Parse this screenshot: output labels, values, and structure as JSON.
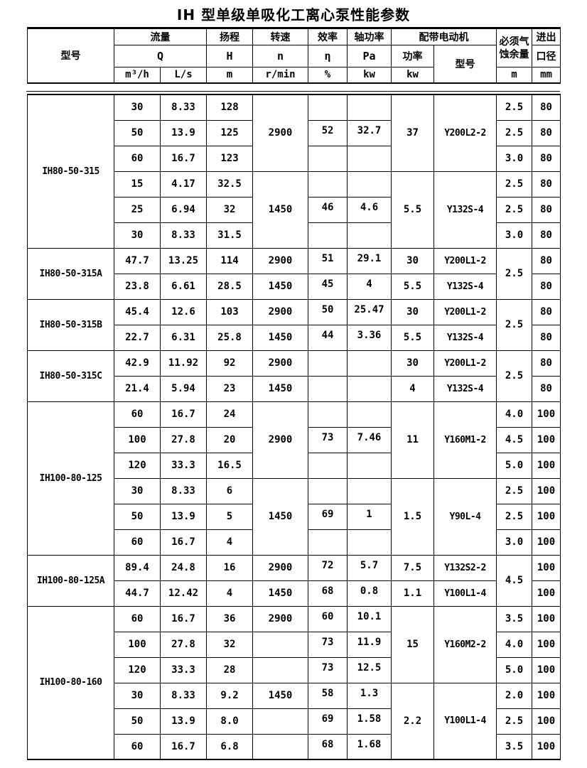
{
  "page_title": "IH 型单级单吸化工离心泵性能参数",
  "colors": {
    "border": "#000000",
    "background": "#ffffff",
    "text": "#000000"
  },
  "table": {
    "header": {
      "model": "型号",
      "flow": "流量",
      "flow_symbol": "Q",
      "flow_unit_m3h": "m³/h",
      "flow_unit_ls": "L/s",
      "head": "扬程",
      "head_symbol": "H",
      "head_unit": "m",
      "speed": "转速",
      "speed_symbol": "n",
      "speed_unit": "r/min",
      "efficiency": "效率",
      "efficiency_symbol": "η",
      "efficiency_unit": "%",
      "shaft_power": "轴功率",
      "shaft_power_symbol": "Pa",
      "shaft_power_unit": "kw",
      "motor_group": "配带电动机",
      "motor_power": "功率",
      "motor_power_unit": "kw",
      "motor_model": "型号",
      "npsh_line1": "必须气",
      "npsh_line2": "蚀余量",
      "npsh_unit": "m",
      "diameter_line1": "进出",
      "diameter_line2": "口径",
      "diameter_unit": "mm"
    },
    "sections": [
      {
        "name": "IH80-50-315",
        "rows": [
          [
            {
              "t": "IH80-50-315",
              "rs": 6,
              "cls": "model"
            },
            {
              "t": "30"
            },
            {
              "t": "8.33"
            },
            {
              "t": "128"
            },
            {
              "t": "2900",
              "rs": 3
            },
            {
              "t": ""
            },
            {
              "t": ""
            },
            {
              "t": "37",
              "rs": 3
            },
            {
              "t": "Y200L2-2",
              "rs": 3,
              "cls": "motor"
            },
            {
              "t": "2.5"
            },
            {
              "t": "80"
            }
          ],
          [
            {
              "t": "50"
            },
            {
              "t": "13.9"
            },
            {
              "t": "125"
            },
            {
              "t": "52",
              "cls": "up"
            },
            {
              "t": "32.7",
              "cls": "up"
            },
            {
              "t": "2.5"
            },
            {
              "t": "80"
            }
          ],
          [
            {
              "t": "60"
            },
            {
              "t": "16.7"
            },
            {
              "t": "123"
            },
            {
              "t": ""
            },
            {
              "t": ""
            },
            {
              "t": "3.0"
            },
            {
              "t": "80"
            }
          ],
          [
            {
              "t": "15"
            },
            {
              "t": "4.17"
            },
            {
              "t": "32.5"
            },
            {
              "t": "1450",
              "rs": 3
            },
            {
              "t": ""
            },
            {
              "t": ""
            },
            {
              "t": "5.5",
              "rs": 3
            },
            {
              "t": "Y132S-4",
              "rs": 3,
              "cls": "motor"
            },
            {
              "t": "2.5"
            },
            {
              "t": "80"
            }
          ],
          [
            {
              "t": "25"
            },
            {
              "t": "6.94"
            },
            {
              "t": "32"
            },
            {
              "t": "46",
              "cls": "up"
            },
            {
              "t": "4.6",
              "cls": "up"
            },
            {
              "t": "2.5"
            },
            {
              "t": "80"
            }
          ],
          [
            {
              "t": "30"
            },
            {
              "t": "8.33"
            },
            {
              "t": "31.5"
            },
            {
              "t": ""
            },
            {
              "t": ""
            },
            {
              "t": "3.0"
            },
            {
              "t": "80"
            }
          ]
        ]
      },
      {
        "name": "IH80-50-315A",
        "rows": [
          [
            {
              "t": "IH80-50-315A",
              "rs": 2,
              "cls": "model"
            },
            {
              "t": "47.7"
            },
            {
              "t": "13.25"
            },
            {
              "t": "114"
            },
            {
              "t": "2900"
            },
            {
              "t": "51",
              "cls": "up"
            },
            {
              "t": "29.1",
              "cls": "up"
            },
            {
              "t": "30"
            },
            {
              "t": "Y200L1-2",
              "cls": "motor"
            },
            {
              "t": "2.5",
              "rs": 2
            },
            {
              "t": "80"
            }
          ],
          [
            {
              "t": "23.8"
            },
            {
              "t": "6.61"
            },
            {
              "t": "28.5"
            },
            {
              "t": "1450"
            },
            {
              "t": "45",
              "cls": "up"
            },
            {
              "t": "4",
              "cls": "up"
            },
            {
              "t": "5.5"
            },
            {
              "t": "Y132S-4",
              "cls": "motor"
            },
            {
              "t": "80"
            }
          ]
        ]
      },
      {
        "name": "IH80-50-315B",
        "rows": [
          [
            {
              "t": "IH80-50-315B",
              "rs": 2,
              "cls": "model"
            },
            {
              "t": "45.4"
            },
            {
              "t": "12.6"
            },
            {
              "t": "103"
            },
            {
              "t": "2900"
            },
            {
              "t": "50",
              "cls": "up"
            },
            {
              "t": "25.47",
              "cls": "up"
            },
            {
              "t": "30"
            },
            {
              "t": "Y200L1-2",
              "cls": "motor"
            },
            {
              "t": "2.5",
              "rs": 2
            },
            {
              "t": "80"
            }
          ],
          [
            {
              "t": "22.7"
            },
            {
              "t": "6.31"
            },
            {
              "t": "25.8"
            },
            {
              "t": "1450"
            },
            {
              "t": "44",
              "cls": "up"
            },
            {
              "t": "3.36",
              "cls": "up"
            },
            {
              "t": "5.5"
            },
            {
              "t": "Y132S-4",
              "cls": "motor"
            },
            {
              "t": "80"
            }
          ]
        ]
      },
      {
        "name": "IH80-50-315C",
        "rows": [
          [
            {
              "t": "IH80-50-315C",
              "rs": 2,
              "cls": "model"
            },
            {
              "t": "42.9"
            },
            {
              "t": "11.92"
            },
            {
              "t": "92"
            },
            {
              "t": "2900"
            },
            {
              "t": ""
            },
            {
              "t": ""
            },
            {
              "t": "30"
            },
            {
              "t": "Y200L1-2",
              "cls": "motor"
            },
            {
              "t": "2.5",
              "rs": 2
            },
            {
              "t": "80"
            }
          ],
          [
            {
              "t": "21.4"
            },
            {
              "t": "5.94"
            },
            {
              "t": "23"
            },
            {
              "t": "1450"
            },
            {
              "t": ""
            },
            {
              "t": ""
            },
            {
              "t": "4"
            },
            {
              "t": "Y132S-4",
              "cls": "motor"
            },
            {
              "t": "80"
            }
          ]
        ]
      },
      {
        "name": "IH100-80-125",
        "rows": [
          [
            {
              "t": "IH100-80-125",
              "rs": 6,
              "cls": "model"
            },
            {
              "t": "60"
            },
            {
              "t": "16.7"
            },
            {
              "t": "24"
            },
            {
              "t": "2900",
              "rs": 3
            },
            {
              "t": ""
            },
            {
              "t": ""
            },
            {
              "t": "11",
              "rs": 3
            },
            {
              "t": "Y160M1-2",
              "rs": 3,
              "cls": "motor"
            },
            {
              "t": "4.0"
            },
            {
              "t": "100"
            }
          ],
          [
            {
              "t": "100"
            },
            {
              "t": "27.8"
            },
            {
              "t": "20"
            },
            {
              "t": "73",
              "cls": "up"
            },
            {
              "t": "7.46",
              "cls": "up"
            },
            {
              "t": "4.5"
            },
            {
              "t": "100"
            }
          ],
          [
            {
              "t": "120"
            },
            {
              "t": "33.3"
            },
            {
              "t": "16.5"
            },
            {
              "t": ""
            },
            {
              "t": ""
            },
            {
              "t": "5.0"
            },
            {
              "t": "100"
            }
          ],
          [
            {
              "t": "30"
            },
            {
              "t": "8.33"
            },
            {
              "t": "6"
            },
            {
              "t": "1450",
              "rs": 3
            },
            {
              "t": ""
            },
            {
              "t": ""
            },
            {
              "t": "1.5",
              "rs": 3
            },
            {
              "t": "Y90L-4",
              "rs": 3,
              "cls": "motor"
            },
            {
              "t": "2.5"
            },
            {
              "t": "100"
            }
          ],
          [
            {
              "t": "50"
            },
            {
              "t": "13.9"
            },
            {
              "t": "5"
            },
            {
              "t": "69",
              "cls": "up"
            },
            {
              "t": "1",
              "cls": "up"
            },
            {
              "t": "2.5"
            },
            {
              "t": "100"
            }
          ],
          [
            {
              "t": "60"
            },
            {
              "t": "16.7"
            },
            {
              "t": "4"
            },
            {
              "t": ""
            },
            {
              "t": ""
            },
            {
              "t": "3.0"
            },
            {
              "t": "100"
            }
          ]
        ]
      },
      {
        "name": "IH100-80-125A",
        "rows": [
          [
            {
              "t": "IH100-80-125A",
              "rs": 2,
              "cls": "model"
            },
            {
              "t": "89.4"
            },
            {
              "t": "24.8"
            },
            {
              "t": "16"
            },
            {
              "t": "2900"
            },
            {
              "t": "72",
              "cls": "up"
            },
            {
              "t": "5.7",
              "cls": "up"
            },
            {
              "t": "7.5"
            },
            {
              "t": "Y132S2-2",
              "cls": "motor"
            },
            {
              "t": "4.5",
              "rs": 2
            },
            {
              "t": "100"
            }
          ],
          [
            {
              "t": "44.7"
            },
            {
              "t": "12.42"
            },
            {
              "t": "4"
            },
            {
              "t": "1450"
            },
            {
              "t": "68",
              "cls": "up"
            },
            {
              "t": "0.8",
              "cls": "up"
            },
            {
              "t": "1.1"
            },
            {
              "t": "Y100L1-4",
              "cls": "motor"
            },
            {
              "t": "100"
            }
          ]
        ]
      },
      {
        "name": "IH100-80-160",
        "rows": [
          [
            {
              "t": "IH100-80-160",
              "rs": 6,
              "cls": "model"
            },
            {
              "t": "60"
            },
            {
              "t": "16.7"
            },
            {
              "t": "36"
            },
            {
              "t": "2900"
            },
            {
              "t": "60",
              "cls": "up"
            },
            {
              "t": "10.1",
              "cls": "up"
            },
            {
              "t": "15",
              "rs": 3
            },
            {
              "t": "Y160M2-2",
              "rs": 3,
              "cls": "motor"
            },
            {
              "t": "3.5"
            },
            {
              "t": "100"
            }
          ],
          [
            {
              "t": "100"
            },
            {
              "t": "27.8"
            },
            {
              "t": "32"
            },
            {
              "t": ""
            },
            {
              "t": "73",
              "cls": "up"
            },
            {
              "t": "11.9",
              "cls": "up"
            },
            {
              "t": "4.0"
            },
            {
              "t": "100"
            }
          ],
          [
            {
              "t": "120"
            },
            {
              "t": "33.3"
            },
            {
              "t": "28"
            },
            {
              "t": ""
            },
            {
              "t": "73",
              "cls": "up"
            },
            {
              "t": "12.5",
              "cls": "up"
            },
            {
              "t": "5.0"
            },
            {
              "t": "100"
            }
          ],
          [
            {
              "t": "30"
            },
            {
              "t": "8.33"
            },
            {
              "t": "9.2"
            },
            {
              "t": "1450"
            },
            {
              "t": "58",
              "cls": "up"
            },
            {
              "t": "1.3",
              "cls": "up"
            },
            {
              "t": "2.2",
              "rs": 3
            },
            {
              "t": "Y100L1-4",
              "rs": 3,
              "cls": "motor"
            },
            {
              "t": "2.0"
            },
            {
              "t": "100"
            }
          ],
          [
            {
              "t": "50"
            },
            {
              "t": "13.9"
            },
            {
              "t": "8.0"
            },
            {
              "t": ""
            },
            {
              "t": "69",
              "cls": "up"
            },
            {
              "t": "1.58",
              "cls": "up"
            },
            {
              "t": "2.5"
            },
            {
              "t": "100"
            }
          ],
          [
            {
              "t": "60"
            },
            {
              "t": "16.7"
            },
            {
              "t": "6.8"
            },
            {
              "t": ""
            },
            {
              "t": "68",
              "cls": "up"
            },
            {
              "t": "1.68",
              "cls": "up"
            },
            {
              "t": "3.5"
            },
            {
              "t": "100"
            }
          ]
        ]
      }
    ]
  }
}
